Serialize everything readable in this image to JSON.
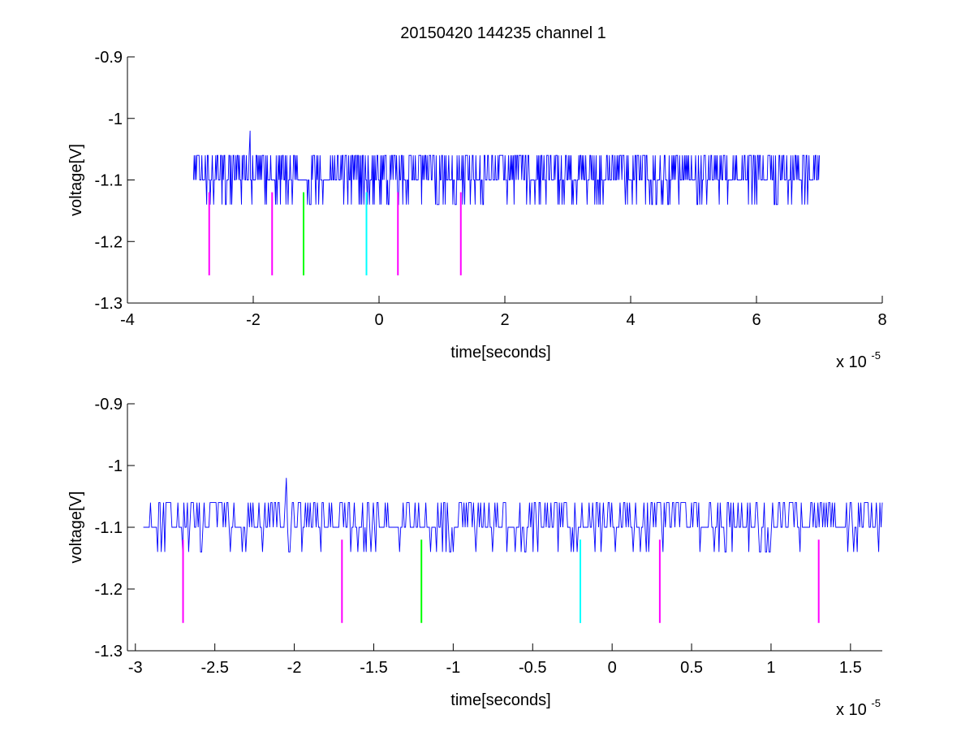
{
  "chart_data": [
    {
      "type": "line",
      "title": "20150420 144235 channel 1",
      "xlabel": "time[seconds]",
      "ylabel": "voltage[V]",
      "x_multiplier_label": "x 10",
      "x_multiplier_exponent": "-5",
      "xlim": [
        -4,
        8
      ],
      "ylim": [
        -1.3,
        -0.9
      ],
      "xticks": [
        -4,
        -2,
        0,
        2,
        4,
        6,
        8
      ],
      "xtick_labels": [
        "-4",
        "-2",
        "0",
        "2",
        "4",
        "6",
        "8"
      ],
      "yticks": [
        -1.3,
        -1.2,
        -1.1,
        -1.0,
        -0.9
      ],
      "ytick_labels": [
        "-1.3",
        "-1.2",
        "-1.1",
        "-1",
        "-0.9"
      ],
      "grid": false,
      "signal": {
        "color": "#0000ff",
        "x_start": -2.95,
        "x_end": 7.0,
        "baseline": -1.1,
        "high_level": -1.06,
        "low_level": -1.14,
        "peak": {
          "x": -2.05,
          "y": -1.02
        }
      },
      "markers": [
        {
          "x": -2.7,
          "y_top": -1.12,
          "y_bottom": -1.255,
          "color": "#ff00ff"
        },
        {
          "x": -1.7,
          "y_top": -1.12,
          "y_bottom": -1.255,
          "color": "#ff00ff"
        },
        {
          "x": -1.2,
          "y_top": -1.12,
          "y_bottom": -1.255,
          "color": "#00ff00"
        },
        {
          "x": -0.2,
          "y_top": -1.12,
          "y_bottom": -1.255,
          "color": "#00ffff"
        },
        {
          "x": 0.3,
          "y_top": -1.12,
          "y_bottom": -1.255,
          "color": "#ff00ff"
        },
        {
          "x": 1.3,
          "y_top": -1.12,
          "y_bottom": -1.255,
          "color": "#ff00ff"
        }
      ]
    },
    {
      "type": "line",
      "title": "",
      "xlabel": "time[seconds]",
      "ylabel": "voltage[V]",
      "x_multiplier_label": "x 10",
      "x_multiplier_exponent": "-5",
      "xlim": [
        -3.05,
        1.7
      ],
      "ylim": [
        -1.3,
        -0.9
      ],
      "xticks": [
        -3,
        -2.5,
        -2,
        -1.5,
        -1,
        -0.5,
        0,
        0.5,
        1,
        1.5
      ],
      "xtick_labels": [
        "-3",
        "-2.5",
        "-2",
        "-1.5",
        "-1",
        "-0.5",
        "0",
        "0.5",
        "1",
        "1.5"
      ],
      "yticks": [
        -1.3,
        -1.2,
        -1.1,
        -1.0,
        -0.9
      ],
      "ytick_labels": [
        "-1.3",
        "-1.2",
        "-1.1",
        "-1",
        "-0.9"
      ],
      "grid": false,
      "signal": {
        "color": "#0000ff",
        "x_start": -2.95,
        "x_end": 1.7,
        "baseline": -1.1,
        "high_level": -1.06,
        "low_level": -1.14,
        "peak": {
          "x": -2.05,
          "y": -1.02
        }
      },
      "markers": [
        {
          "x": -2.7,
          "y_top": -1.12,
          "y_bottom": -1.255,
          "color": "#ff00ff"
        },
        {
          "x": -1.7,
          "y_top": -1.12,
          "y_bottom": -1.255,
          "color": "#ff00ff"
        },
        {
          "x": -1.2,
          "y_top": -1.12,
          "y_bottom": -1.255,
          "color": "#00ff00"
        },
        {
          "x": -0.2,
          "y_top": -1.12,
          "y_bottom": -1.255,
          "color": "#00ffff"
        },
        {
          "x": 0.3,
          "y_top": -1.12,
          "y_bottom": -1.255,
          "color": "#ff00ff"
        },
        {
          "x": 1.3,
          "y_top": -1.12,
          "y_bottom": -1.255,
          "color": "#ff00ff"
        }
      ]
    }
  ]
}
